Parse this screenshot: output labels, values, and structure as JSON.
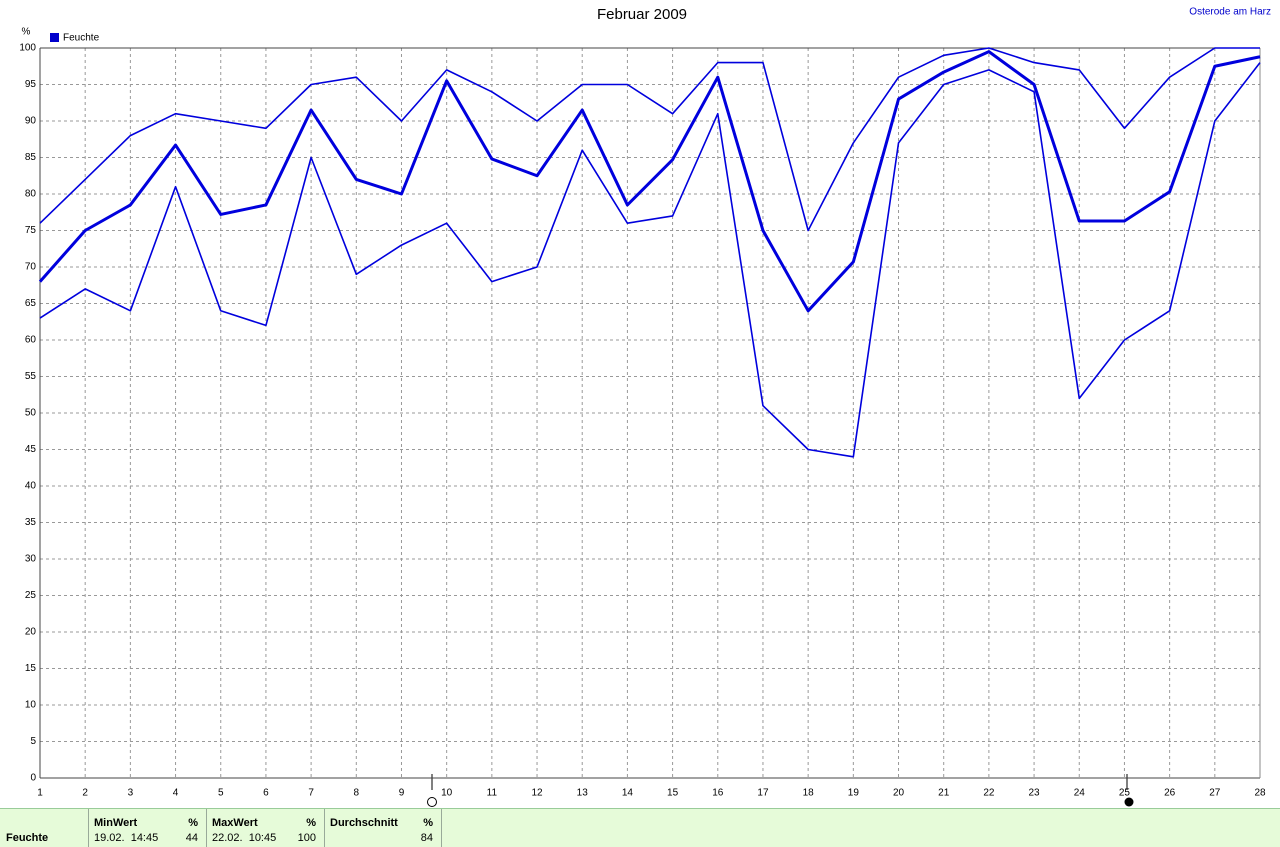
{
  "chart_data": {
    "type": "line",
    "title": "Februar 2009",
    "location": "Osterode am Harz",
    "y_unit": "%",
    "legend": {
      "label": "Feuchte",
      "color": "#0000cc"
    },
    "x": [
      1,
      2,
      3,
      4,
      5,
      6,
      7,
      8,
      9,
      10,
      11,
      12,
      13,
      14,
      15,
      16,
      17,
      18,
      19,
      20,
      21,
      22,
      23,
      24,
      25,
      26,
      27,
      28
    ],
    "series": [
      {
        "color": "#0000dd",
        "width": 1.6,
        "values": [
          76,
          82,
          88,
          91,
          90,
          89,
          95,
          96,
          90,
          97,
          94,
          90,
          95,
          95,
          91,
          98,
          98,
          75,
          87,
          96,
          99,
          100,
          98,
          97,
          89,
          96,
          100,
          100
        ]
      },
      {
        "color": "#0000dd",
        "width": 3,
        "values": [
          68,
          75,
          78.5,
          86.7,
          77.2,
          78.5,
          91.5,
          82,
          80,
          95.5,
          84.8,
          82.5,
          91.5,
          78.5,
          84.7,
          96,
          75,
          64,
          70.7,
          93,
          96.7,
          99.5,
          95,
          76.3,
          76.3,
          80.3,
          97.5,
          98.8
        ]
      },
      {
        "color": "#0000dd",
        "width": 1.6,
        "values": [
          63,
          67,
          64,
          81,
          64,
          62,
          85,
          69,
          73,
          76,
          68,
          70,
          86,
          76,
          77,
          91,
          51,
          45,
          44,
          87,
          95,
          97,
          94,
          52,
          60,
          64,
          90,
          98
        ]
      }
    ],
    "xlim": [
      1,
      28
    ],
    "xticks": [
      1,
      2,
      3,
      4,
      5,
      6,
      7,
      8,
      9,
      10,
      11,
      12,
      13,
      14,
      15,
      16,
      17,
      18,
      19,
      20,
      21,
      22,
      23,
      24,
      25,
      26,
      27,
      28
    ],
    "ylim": [
      0,
      100
    ],
    "yticks": [
      0,
      5,
      10,
      15,
      20,
      25,
      30,
      35,
      40,
      45,
      50,
      55,
      60,
      65,
      70,
      75,
      80,
      85,
      90,
      95,
      100
    ],
    "grid": true
  },
  "summary": {
    "row_label": "Feuchte",
    "columns": [
      {
        "header": "MinWert",
        "unit": "%",
        "time": "19.02.  14:45",
        "value": 44
      },
      {
        "header": "MaxWert",
        "unit": "%",
        "time": "22.02.  10:45",
        "value": 100
      },
      {
        "header": "Durchschnitt",
        "unit": "%",
        "value": 84
      }
    ]
  }
}
